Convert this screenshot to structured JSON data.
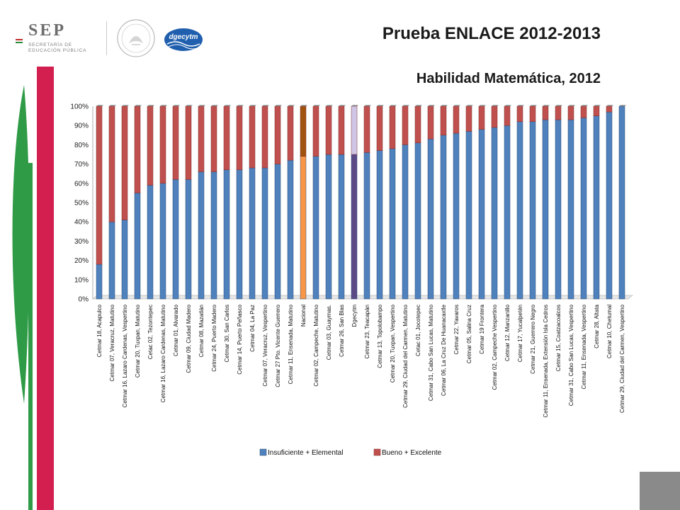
{
  "header": {
    "logo_text": "SEP",
    "logo_line1": "SECRETARÍA DE",
    "logo_line2": "EDUCACIÓN PÚBLICA",
    "dgecytm_text": "dgecytm",
    "title": "Prueba ENLACE 2012-2013",
    "subtitle": "Habilidad Matemática, 2012"
  },
  "colors": {
    "insuficiente": "#4f81bd",
    "bueno": "#c0504d",
    "nacional_low": "#f79646",
    "nacional_high": "#a0520f",
    "dgecytm_low": "#5c4a86",
    "dgecytm_high": "#cfc6e6",
    "deco_red": "#d21f4f",
    "deco_green": "#2f9b47"
  },
  "chart_data": {
    "type": "bar",
    "stacked": true,
    "ylim": [
      0,
      100
    ],
    "yticks": [
      "0%",
      "10%",
      "20%",
      "30%",
      "40%",
      "50%",
      "60%",
      "70%",
      "80%",
      "90%",
      "100%"
    ],
    "categories": [
      "Cetmar 18, Acapulco",
      "Cetmar 07, Veracruz, Matutino",
      "Cetmar 16, Lazaro Cardenas, Vespertino",
      "Cetmar 20, Tuxpan, Matutino",
      "Cetac 02, Tezontepec",
      "Cetmar 16, Lazaro Cardenas, Matutino",
      "Cetmar 01, Alvarado",
      "Cetmar 09, Ciudad Madero",
      "Cetmar 08, Mazatlán",
      "Cetmar 24, Puerto Madero",
      "Cetmar 30, San Carlos",
      "Cetmar 14, Puerto Peñasco",
      "Cetmar 04, La Paz",
      "Cetmar 07, Veracruz, Vespertino",
      "Cetmar 27 Pto. Vicente Guerrero",
      "Cetmar 11, Ensenada, Matutino",
      "Nacional",
      "Cetmar 02, Campeche, Matutino",
      "Cetmar 03, Guaymas.",
      "Cetmar 26, San Blas",
      "Dgecytm",
      "Cetmar 23, Teacapán",
      "Cetmar 13, Topolobampo",
      "Cetmar 20, Tuxpan, Vespertino",
      "Cetmar 29, Ciudad del Carmen, Matutino",
      "Cetac 01, Jocotepec",
      "Cetmar 31, Cabo San Lucas, Matutino",
      "Cetmar 06, La Cruz De Huanacaxtle",
      "Cetmar 22, Yavaros",
      "Cetmar 05, Salina Cruz",
      "Cetmar 19 Frontera",
      "Cetmar 02, Campeche Vespertino",
      "Cetmar 12, Manzanillo",
      "Cetmar 17, Yucalpetén",
      "Cetmar 21, Guerrero Negro",
      "Cetmar 11, Ensenada, Extensión Isla Cedros",
      "Cetmar 15, Coatzacoalcos",
      "Cetmar 31, Cabo San Lucas, Vespertino",
      "Cetmar 11, Ensenada, Vespertino",
      "Cetmar 28, Altata",
      "Cetmar 10, Chetumal",
      "Cetmar 29, Ciudad del Carmen, Vespertino"
    ],
    "series": [
      {
        "name": "Insuficiente + Elemental",
        "values": [
          18,
          40,
          41,
          55,
          59,
          60,
          62,
          62,
          66,
          66,
          67,
          67,
          68,
          68,
          70,
          72,
          74,
          74,
          75,
          75,
          75,
          76,
          77,
          78,
          80,
          81,
          83,
          85,
          86,
          87,
          88,
          89,
          90,
          92,
          92,
          93,
          93,
          93,
          94,
          95,
          97,
          100
        ]
      },
      {
        "name": "Bueno + Excelente",
        "values": [
          82,
          60,
          59,
          45,
          41,
          40,
          38,
          38,
          34,
          34,
          33,
          33,
          32,
          32,
          30,
          28,
          26,
          26,
          25,
          25,
          25,
          24,
          23,
          22,
          20,
          19,
          17,
          15,
          14,
          13,
          12,
          11,
          10,
          8,
          8,
          7,
          7,
          7,
          6,
          5,
          3,
          0
        ]
      }
    ],
    "legend": "bottom"
  }
}
